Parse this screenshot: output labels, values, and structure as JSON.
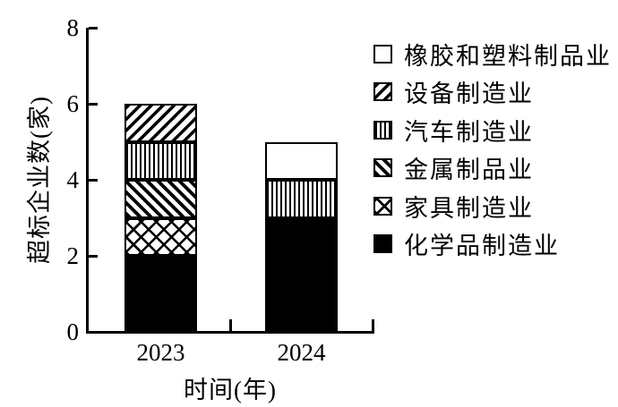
{
  "figure": {
    "background_color": "#ffffff",
    "ink_color": "#000000"
  },
  "chart_data": {
    "type": "bar",
    "stacked": true,
    "title": "",
    "xlabel": "时间(年)",
    "ylabel": "超标企业数(家)",
    "categories": [
      "2023",
      "2024"
    ],
    "ylim": [
      0,
      8
    ],
    "yticks": [
      0,
      2,
      4,
      6,
      8
    ],
    "grid": false,
    "legend_position": "right",
    "series": [
      {
        "name": "化学品制造业",
        "pattern": "solid-black",
        "values": [
          2,
          3
        ]
      },
      {
        "name": "家具制造业",
        "pattern": "diagonal-crosshatch",
        "values": [
          1,
          0
        ]
      },
      {
        "name": "金属制品业",
        "pattern": "backslash-hatch",
        "values": [
          1,
          0
        ]
      },
      {
        "name": "汽车制造业",
        "pattern": "vertical-lines",
        "values": [
          1,
          1
        ]
      },
      {
        "name": "设备制造业",
        "pattern": "slash-hatch",
        "values": [
          1,
          0
        ]
      },
      {
        "name": "橡胶和塑料制品业",
        "pattern": "white",
        "values": [
          0,
          1
        ]
      }
    ],
    "totals": [
      6,
      5
    ],
    "legend_top_to_bottom": [
      "橡胶和塑料制品业",
      "设备制造业",
      "汽车制造业",
      "金属制品业",
      "家具制造业",
      "化学品制造业"
    ]
  }
}
